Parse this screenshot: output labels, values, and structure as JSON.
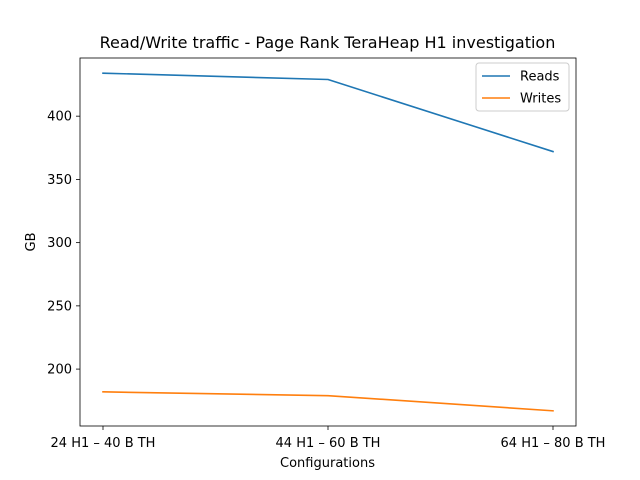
{
  "chart_data": {
    "type": "line",
    "title": "Read/Write traffic - Page Rank TeraHeap H1 investigation",
    "xlabel": "Configurations",
    "ylabel": "GB",
    "categories": [
      "24 H1 – 40 B TH",
      "44 H1 – 60 B TH",
      "64 H1 – 80 B TH"
    ],
    "series": [
      {
        "name": "Reads",
        "color": "#1f77b4",
        "values": [
          434,
          429,
          372
        ]
      },
      {
        "name": "Writes",
        "color": "#ff7f0e",
        "values": [
          182,
          179,
          167
        ]
      }
    ],
    "ylim": [
      155,
      446
    ],
    "yticks": [
      200,
      250,
      300,
      350,
      400
    ],
    "grid": false,
    "legend": "top-right"
  }
}
